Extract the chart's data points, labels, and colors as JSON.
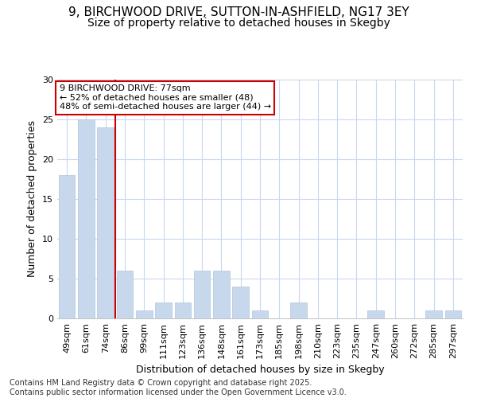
{
  "title_line1": "9, BIRCHWOOD DRIVE, SUTTON-IN-ASHFIELD, NG17 3EY",
  "title_line2": "Size of property relative to detached houses in Skegby",
  "xlabel": "Distribution of detached houses by size in Skegby",
  "ylabel": "Number of detached properties",
  "categories": [
    "49sqm",
    "61sqm",
    "74sqm",
    "86sqm",
    "99sqm",
    "111sqm",
    "123sqm",
    "136sqm",
    "148sqm",
    "161sqm",
    "173sqm",
    "185sqm",
    "198sqm",
    "210sqm",
    "223sqm",
    "235sqm",
    "247sqm",
    "260sqm",
    "272sqm",
    "285sqm",
    "297sqm"
  ],
  "values": [
    18,
    25,
    24,
    6,
    1,
    2,
    2,
    6,
    6,
    4,
    1,
    0,
    2,
    0,
    0,
    0,
    1,
    0,
    0,
    1,
    1
  ],
  "bar_color": "#c8d8ec",
  "bar_edgecolor": "#b0c4de",
  "fig_background_color": "#ffffff",
  "axes_background_color": "#ffffff",
  "grid_color": "#c8d8f0",
  "vline_x": 2.5,
  "vline_color": "#cc0000",
  "annotation_text": "9 BIRCHWOOD DRIVE: 77sqm\n← 52% of detached houses are smaller (48)\n48% of semi-detached houses are larger (44) →",
  "annotation_box_facecolor": "#ffffff",
  "annotation_box_edgecolor": "#cc0000",
  "ylim": [
    0,
    30
  ],
  "yticks": [
    0,
    5,
    10,
    15,
    20,
    25,
    30
  ],
  "footer_text": "Contains HM Land Registry data © Crown copyright and database right 2025.\nContains public sector information licensed under the Open Government Licence v3.0.",
  "title_fontsize": 11,
  "subtitle_fontsize": 10,
  "axis_label_fontsize": 9,
  "tick_fontsize": 8,
  "annotation_fontsize": 8,
  "footer_fontsize": 7
}
